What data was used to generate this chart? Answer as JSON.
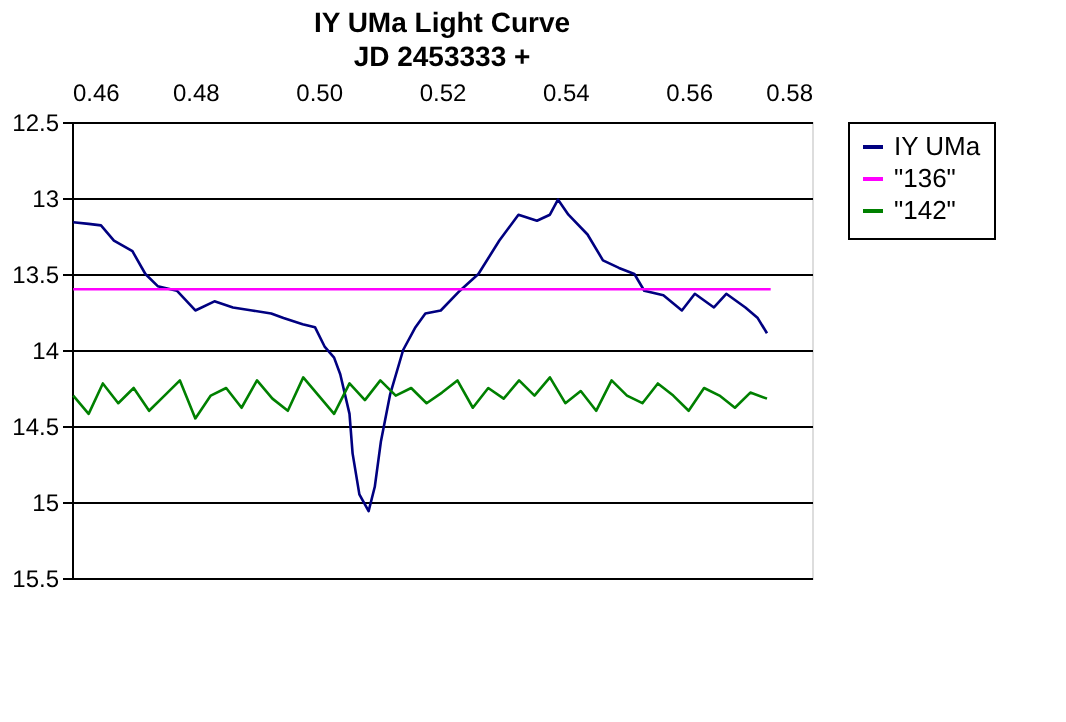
{
  "chart_data": {
    "type": "line",
    "title": "IY UMa Light Curve",
    "subtitle": "JD 2453333 +",
    "xlim": [
      0.46,
      0.58
    ],
    "xticks": [
      0.46,
      0.48,
      {
        "value": 0.5,
        "label": "0.50"
      },
      0.52,
      0.54,
      0.56,
      0.58
    ],
    "ylim": [
      15.5,
      12.5
    ],
    "yticks": [
      12.5,
      13,
      13.5,
      14,
      14.5,
      15,
      15.5
    ],
    "grid": "y",
    "legend": "right",
    "marker": "none",
    "line_style": "solid",
    "series": [
      {
        "name": "IY UMa",
        "color": "#000080",
        "x": [
          0.4602,
          0.4627,
          0.4647,
          0.4668,
          0.4698,
          0.4719,
          0.4739,
          0.477,
          0.48,
          0.4831,
          0.4861,
          0.4892,
          0.4923,
          0.4943,
          0.4974,
          0.4994,
          0.501,
          0.5025,
          0.5035,
          0.505,
          0.5055,
          0.5066,
          0.5081,
          0.5091,
          0.5101,
          0.5116,
          0.5137,
          0.5157,
          0.5173,
          0.5198,
          0.5229,
          0.5259,
          0.5293,
          0.5324,
          0.5354,
          0.5375,
          0.5388,
          0.5405,
          0.5436,
          0.5461,
          0.5487,
          0.5512,
          0.5528,
          0.5559,
          0.5589,
          0.561,
          0.5641,
          0.5661,
          0.5692,
          0.5712,
          0.5727
        ],
        "values": [
          13.16,
          13.17,
          13.18,
          13.28,
          13.35,
          13.5,
          13.58,
          13.61,
          13.74,
          13.68,
          13.72,
          13.74,
          13.76,
          13.79,
          13.83,
          13.85,
          13.98,
          14.05,
          14.16,
          14.42,
          14.68,
          14.95,
          15.06,
          14.9,
          14.6,
          14.29,
          14.0,
          13.85,
          13.76,
          13.74,
          13.61,
          13.5,
          13.28,
          13.11,
          13.15,
          13.11,
          13.01,
          13.11,
          13.24,
          13.41,
          13.46,
          13.5,
          13.61,
          13.64,
          13.74,
          13.63,
          13.72,
          13.63,
          13.72,
          13.79,
          13.89
        ]
      },
      {
        "name": "\"136\"",
        "color": "#ff00ff",
        "x": [
          0.4602,
          0.5733
        ],
        "values": [
          13.6,
          13.6
        ]
      },
      {
        "name": "\"142\"",
        "color": "#008000",
        "x": [
          0.4602,
          0.4627,
          0.465,
          0.4675,
          0.47,
          0.4725,
          0.475,
          0.4775,
          0.48,
          0.4825,
          0.485,
          0.4875,
          0.49,
          0.4925,
          0.495,
          0.4975,
          0.5,
          0.5025,
          0.505,
          0.5075,
          0.51,
          0.5125,
          0.515,
          0.5175,
          0.52,
          0.5225,
          0.525,
          0.5275,
          0.53,
          0.5325,
          0.535,
          0.5375,
          0.54,
          0.5425,
          0.545,
          0.5475,
          0.55,
          0.5525,
          0.555,
          0.5575,
          0.56,
          0.5625,
          0.565,
          0.5675,
          0.57,
          0.5727
        ],
        "values": [
          14.3,
          14.42,
          14.22,
          14.35,
          14.25,
          14.4,
          14.3,
          14.2,
          14.45,
          14.3,
          14.25,
          14.38,
          14.2,
          14.32,
          14.4,
          14.18,
          14.3,
          14.42,
          14.22,
          14.33,
          14.2,
          14.3,
          14.25,
          14.35,
          14.28,
          14.2,
          14.38,
          14.25,
          14.32,
          14.2,
          14.3,
          14.18,
          14.35,
          14.27,
          14.4,
          14.2,
          14.3,
          14.35,
          14.22,
          14.3,
          14.4,
          14.25,
          14.3,
          14.38,
          14.28,
          14.32
        ]
      }
    ]
  }
}
